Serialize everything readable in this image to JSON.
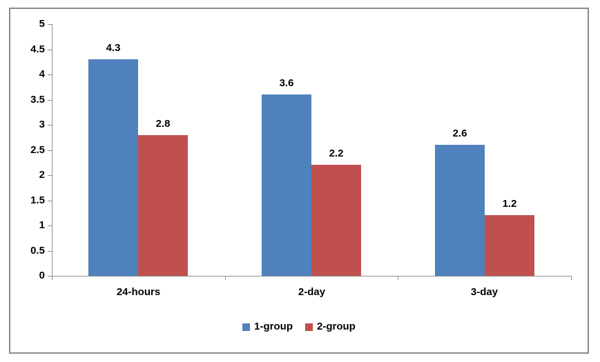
{
  "chart_data": {
    "type": "bar",
    "categories": [
      "24-hours",
      "2-day",
      "3-day"
    ],
    "series": [
      {
        "name": "1-group",
        "color": "#4f81bd",
        "values": [
          4.3,
          3.6,
          2.6
        ]
      },
      {
        "name": "2-group",
        "color": "#c0504d",
        "values": [
          2.8,
          2.2,
          1.2
        ]
      }
    ],
    "title": "",
    "xlabel": "",
    "ylabel": "",
    "ylim": [
      0,
      5
    ],
    "ytick_step": 0.5,
    "y_tick_labels": [
      "5",
      "4.5",
      "4",
      "3.5",
      "3",
      "2.5",
      "2",
      "1.5",
      "1",
      "0.5",
      "0"
    ],
    "grid": false,
    "legend_position": "bottom",
    "data_labels_shown": true,
    "data_label_texts": {
      "1-group": [
        "4.3",
        "3.6",
        "2.6"
      ],
      "2-group": [
        "2.8",
        "2.2",
        "1.2"
      ]
    }
  },
  "colors": {
    "series_blue": "#4f81bd",
    "series_red": "#c0504d",
    "axis_line": "#8e8e8e",
    "chart_border": "#8a8a8a",
    "background": "#ffffff",
    "label_text": "#000000"
  }
}
